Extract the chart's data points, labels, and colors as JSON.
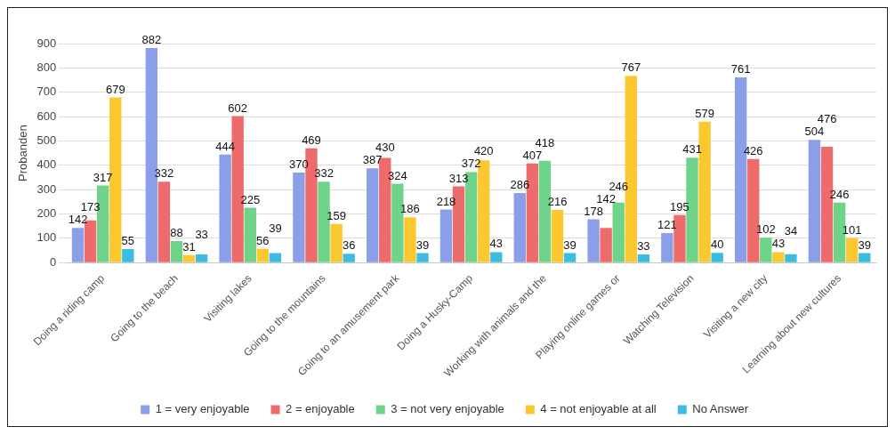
{
  "chart_data": {
    "type": "bar",
    "ylabel": "Probanden",
    "categories": [
      "Doing a riding camp",
      "Going to the beach",
      "Visiting lakes",
      "Going to the mountains",
      "Going to an amusement park",
      "Doing a Husky-Camp",
      "Working with animals and the",
      "Playing online games or",
      "Watching Television",
      "Visiting a new city",
      "Learning about new cultures"
    ],
    "series": [
      {
        "name": "1 = very enjoyable",
        "color": "#8a9fe8",
        "values": [
          142,
          882,
          444,
          370,
          387,
          218,
          286,
          178,
          121,
          761,
          504
        ]
      },
      {
        "name": "2 = enjoyable",
        "color": "#ee6b6b",
        "values": [
          173,
          332,
          602,
          469,
          430,
          313,
          407,
          142,
          195,
          426,
          476
        ]
      },
      {
        "name": "3 = not very enjoyable",
        "color": "#6fd48a",
        "values": [
          317,
          88,
          225,
          332,
          324,
          372,
          418,
          246,
          431,
          102,
          246
        ]
      },
      {
        "name": "4 = not enjoyable at all",
        "color": "#fcc830",
        "values": [
          679,
          31,
          56,
          159,
          186,
          420,
          216,
          767,
          579,
          43,
          101
        ]
      },
      {
        "name": "No Answer",
        "color": "#3bbde0",
        "values": [
          55,
          33,
          39,
          36,
          39,
          43,
          39,
          33,
          40,
          34,
          39
        ]
      }
    ],
    "ylim": [
      0,
      900
    ],
    "yticks": [
      0,
      100,
      200,
      300,
      400,
      500,
      600,
      700,
      800,
      900
    ],
    "grid": "y",
    "legend": "bottom",
    "data_labels": true
  }
}
